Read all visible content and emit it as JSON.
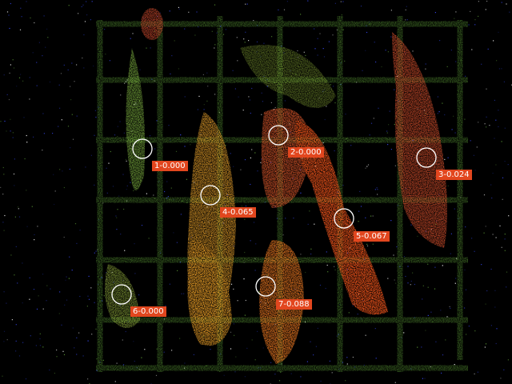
{
  "view": {
    "background": "#000000",
    "grid_color": "#5fa038",
    "hot_color": "#ff5a1e",
    "warm_color": "#ffb028",
    "label_bg": "#e2461e"
  },
  "markers": [
    {
      "id": "1",
      "value": "-0.000",
      "text": "1-0.000"
    },
    {
      "id": "2",
      "value": "-0.000",
      "text": "2-0.000"
    },
    {
      "id": "3",
      "value": "-0.024",
      "text": "3-0.024"
    },
    {
      "id": "4",
      "value": "-0.065",
      "text": "4-0.065"
    },
    {
      "id": "5",
      "value": "-0.067",
      "text": "5-0.067"
    },
    {
      "id": "6",
      "value": "-0.000",
      "text": "6-0.000"
    },
    {
      "id": "7",
      "value": "-0.088",
      "text": "7-0.088"
    }
  ]
}
